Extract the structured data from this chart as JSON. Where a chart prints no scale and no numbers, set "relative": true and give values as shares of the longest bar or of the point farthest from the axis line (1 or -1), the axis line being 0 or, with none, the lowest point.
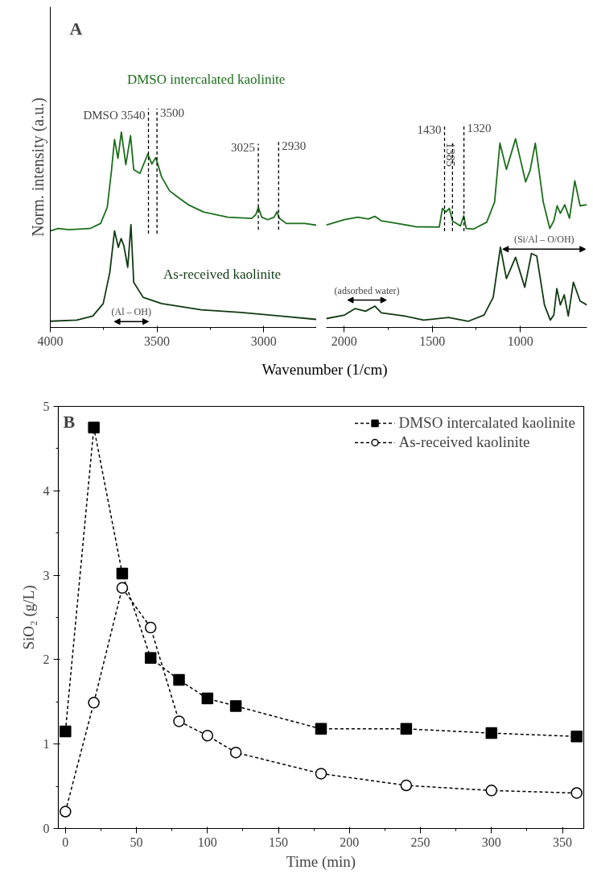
{
  "chart_data": [
    {
      "type": "line",
      "relative": true,
      "ylabel": "Norm. intensity (a.u.)",
      "xlabel": "Wavenumber (1/cm)",
      "annotations": [
        "A",
        "(Al – OH)"
      ],
      "xlim": [
        4000,
        2752
      ],
      "xticks": [
        4000,
        3500,
        3000
      ],
      "tick_labels": "x",
      "grid": false,
      "line_style": "solid",
      "series": [
        {
          "name": "DMSO intercalated kaolinite",
          "color": "#1b6e1b",
          "x": [
            4000,
            3963,
            3913,
            3814,
            3764,
            3733,
            3714,
            3699,
            3683,
            3667,
            3646,
            3624,
            3609,
            3580,
            3543,
            3524,
            3506,
            3478,
            3441,
            3410,
            3354,
            3280,
            3168,
            3056,
            3037,
            3025,
            3009,
            2982,
            2951,
            2938,
            2926,
            2895,
            2808,
            2752
          ],
          "values": [
            0.494,
            0.506,
            0.5,
            0.506,
            0.532,
            0.615,
            0.795,
            0.962,
            0.865,
            1.0,
            0.833,
            0.981,
            0.808,
            0.788,
            0.887,
            0.836,
            0.869,
            0.769,
            0.699,
            0.673,
            0.628,
            0.59,
            0.564,
            0.558,
            0.577,
            0.615,
            0.564,
            0.551,
            0.564,
            0.592,
            0.558,
            0.532,
            0.532,
            0.523
          ]
        },
        {
          "name": "As-received kaolinite",
          "color": "#103a12",
          "x": [
            4000,
            3876,
            3801,
            3752,
            3721,
            3699,
            3681,
            3668,
            3655,
            3637,
            3622,
            3609,
            3565,
            3478,
            3292,
            3106,
            2919,
            2752
          ],
          "values": [
            0.032,
            0.038,
            0.058,
            0.122,
            0.282,
            0.494,
            0.41,
            0.455,
            0.417,
            0.308,
            0.526,
            0.231,
            0.154,
            0.122,
            0.09,
            0.077,
            0.058,
            0.041
          ]
        }
      ],
      "ref_lines": [
        {
          "axis": "x",
          "value": 3540,
          "label": "DMSO 3540",
          "color": "#000000",
          "line_style": "dashed"
        },
        {
          "axis": "x",
          "value": 3500,
          "label": "3500",
          "color": "#000000",
          "line_style": "dashed"
        },
        {
          "axis": "x",
          "value": 3025,
          "label": "3025",
          "color": "#000000",
          "line_style": "dashed"
        },
        {
          "axis": "x",
          "value": 2930,
          "label": "2930",
          "color": "#000000",
          "line_style": "dashed"
        }
      ]
    },
    {
      "type": "line",
      "relative": true,
      "xlim": [
        2101,
        622
      ],
      "xticks": [
        2000,
        1500,
        1000
      ],
      "tick_labels": "x",
      "grid": false,
      "line_style": "solid",
      "annotations": [
        "(adsorbed water)",
        "(Si/Al – O/OH)"
      ],
      "series": [
        {
          "color": "#1b6e1b",
          "x": [
            2101,
            1997,
            1922,
            1863,
            1825,
            1788,
            1698,
            1594,
            1460,
            1442,
            1422,
            1403,
            1385,
            1340,
            1321,
            1307,
            1265,
            1191,
            1146,
            1116,
            1079,
            1027,
            970,
            945,
            915,
            870,
            833,
            810,
            791,
            773,
            748,
            721,
            691,
            661,
            622
          ],
          "values": [
            0.543,
            0.572,
            0.585,
            0.575,
            0.589,
            0.565,
            0.552,
            0.534,
            0.532,
            0.632,
            0.612,
            0.632,
            0.565,
            0.538,
            0.592,
            0.525,
            0.522,
            0.558,
            0.665,
            0.977,
            0.838,
            1.0,
            0.772,
            0.831,
            0.977,
            0.665,
            0.525,
            0.565,
            0.645,
            0.605,
            0.651,
            0.579,
            0.778,
            0.645,
            0.651
          ]
        },
        {
          "color": "#103a12",
          "x": [
            2101,
            1997,
            1937,
            1878,
            1825,
            1788,
            1654,
            1549,
            1407,
            1295,
            1206,
            1154,
            1113,
            1079,
            1027,
            975,
            937,
            907,
            863,
            830,
            810,
            793,
            773,
            751,
            728,
            699,
            661,
            622
          ],
          "values": [
            0.047,
            0.066,
            0.1,
            0.086,
            0.113,
            0.077,
            0.06,
            0.039,
            0.053,
            0.033,
            0.066,
            0.16,
            0.425,
            0.259,
            0.372,
            0.213,
            0.392,
            0.379,
            0.119,
            0.039,
            0.066,
            0.206,
            0.119,
            0.173,
            0.06,
            0.24,
            0.14,
            0.119
          ]
        }
      ],
      "ref_lines": [
        {
          "axis": "x",
          "value": 1430,
          "label": "1430",
          "color": "#000000",
          "line_style": "dashed"
        },
        {
          "axis": "x",
          "value": 1385,
          "label": "1385",
          "color": "#000000",
          "line_style": "dashed"
        },
        {
          "axis": "x",
          "value": 1320,
          "label": "1320",
          "color": "#000000",
          "line_style": "dashed"
        }
      ]
    },
    {
      "type": "line",
      "xlabel": "Time (min)",
      "ylabel": "SiO₂ (g/L)",
      "annotations": [
        "B"
      ],
      "xlim": [
        -5,
        365
      ],
      "ylim": [
        0,
        5
      ],
      "xticks": [
        0,
        50,
        100,
        150,
        200,
        250,
        300,
        350
      ],
      "yticks": [
        0,
        1,
        2,
        3,
        4,
        5
      ],
      "grid": false,
      "legend": "top right",
      "line_style": "dashed",
      "x": [
        0,
        20,
        40,
        60,
        80,
        100,
        120,
        180,
        240,
        300,
        360
      ],
      "series": [
        {
          "name": "DMSO intercalated kaolinite",
          "color": "#000000",
          "marker": "square",
          "values": [
            1.15,
            4.75,
            3.02,
            2.02,
            1.76,
            1.54,
            1.45,
            1.18,
            1.18,
            1.13,
            1.09
          ]
        },
        {
          "name": "As-received kaolinite",
          "color": "#000000",
          "marker": "circle",
          "values": [
            0.2,
            1.49,
            2.85,
            2.38,
            1.27,
            1.1,
            0.9,
            0.65,
            0.51,
            0.45,
            0.42
          ]
        }
      ]
    }
  ]
}
